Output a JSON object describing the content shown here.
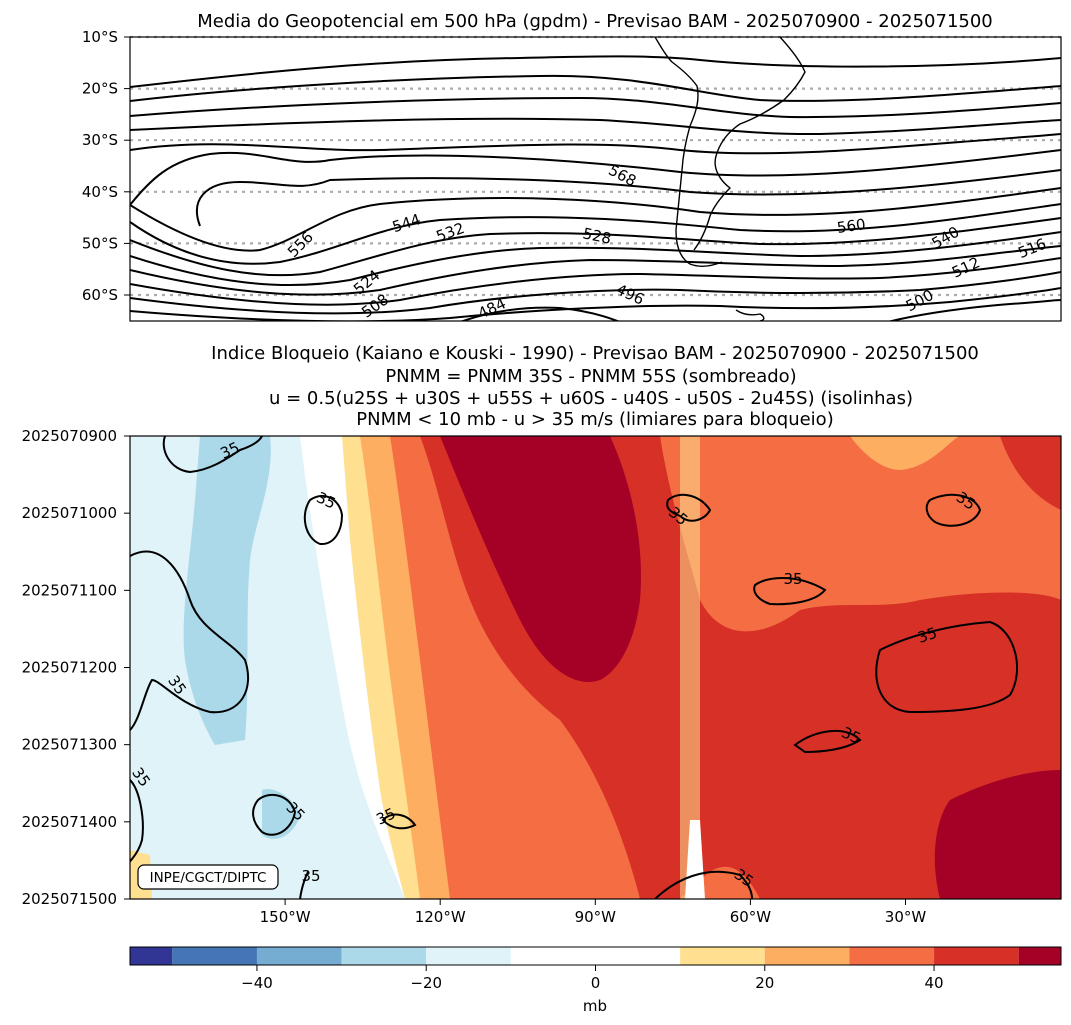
{
  "chart_data": [
    {
      "type": "contour",
      "title": "Media do Geopotencial em 500 hPa (gpdm) - Previsao BAM - 2025070900 - 2025071500",
      "ylabel": "",
      "xlabel": "",
      "yticks": [
        "10°S",
        "20°S",
        "30°S",
        "40°S",
        "50°S",
        "60°S"
      ],
      "ylim": [
        -65,
        -10
      ],
      "contour_labels": [
        "568",
        "560",
        "556",
        "544",
        "540",
        "532",
        "528",
        "524",
        "516",
        "512",
        "508",
        "500",
        "496",
        "484"
      ],
      "grid": "dotted latitude lines"
    },
    {
      "type": "heatmap",
      "title_lines": [
        "Indice Bloqueio (Kaiano e Kouski - 1990) - Previsao BAM - 2025070900 - 2025071500",
        "PNMM = PNMM 35S - PNMM 55S (sombreado)",
        "u = 0.5(u25S + u30S + u55S + u60S - u40S - u50S - 2u45S) (isolinhas)",
        "PNMM < 10 mb - u > 35 m/s (limiares para bloqueio)"
      ],
      "yticks": [
        "2025070900",
        "2025071000",
        "2025071100",
        "2025071200",
        "2025071300",
        "2025071400",
        "2025071500"
      ],
      "xticks": [
        "150°W",
        "120°W",
        "90°W",
        "60°W",
        "30°W"
      ],
      "contour_label": "35",
      "credit": "INPE/CGCT/DIPTC"
    },
    {
      "type": "colorbar",
      "levels": [
        -55,
        -50,
        -40,
        -30,
        -20,
        -10,
        10,
        20,
        30,
        40,
        50,
        55
      ],
      "colors": [
        "#313695",
        "#4575b4",
        "#74add1",
        "#abd9e9",
        "#e0f3f8",
        "#ffffff",
        "#fee090",
        "#fdae61",
        "#f46d43",
        "#d73027",
        "#a50026"
      ],
      "ticks": [
        -40,
        -20,
        0,
        20,
        40
      ],
      "tick_labels": [
        "−40",
        "−20",
        "0",
        "20",
        "40"
      ],
      "label": "mb"
    }
  ]
}
